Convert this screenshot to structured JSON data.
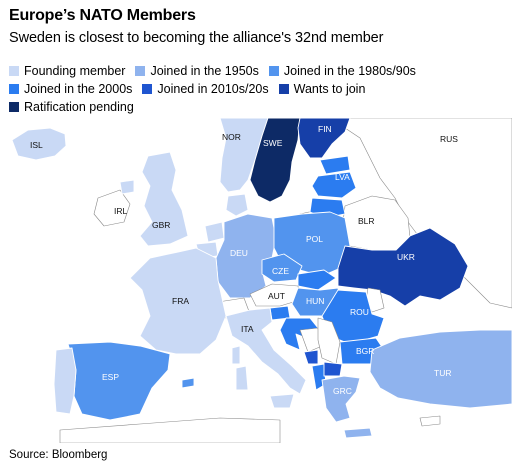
{
  "title": "Europe’s NATO Members",
  "subtitle": "Sweden is closest to becoming the alliance's 32nd member",
  "source": "Source: Bloomberg",
  "legend": [
    {
      "label": "Founding member",
      "color": "#c9d9f5"
    },
    {
      "label": "Joined in the 1950s",
      "color": "#8fb3ee"
    },
    {
      "label": "Joined in the 1980s/90s",
      "color": "#5294ee"
    },
    {
      "label": "Joined in the 2000s",
      "color": "#2b7cf0"
    },
    {
      "label": "Joined in 2010s/20s",
      "color": "#1f55d0"
    },
    {
      "label": "Wants to join",
      "color": "#163fa8"
    },
    {
      "label": "Ratification pending",
      "color": "#0d2a66"
    }
  ],
  "countries": {
    "ISL": "ISL",
    "NOR": "NOR",
    "SWE": "SWE",
    "FIN": "FIN",
    "RUS": "RUS",
    "LVA": "LVA",
    "IRL": "IRL",
    "GBR": "GBR",
    "BLR": "BLR",
    "DEU": "DEU",
    "POL": "POL",
    "CZE": "CZE",
    "UKR": "UKR",
    "FRA": "FRA",
    "AUT": "AUT",
    "HUN": "HUN",
    "ROU": "ROU",
    "ITA": "ITA",
    "BGR": "BGR",
    "ESP": "ESP",
    "TUR": "TUR",
    "GRC": "GRC"
  }
}
